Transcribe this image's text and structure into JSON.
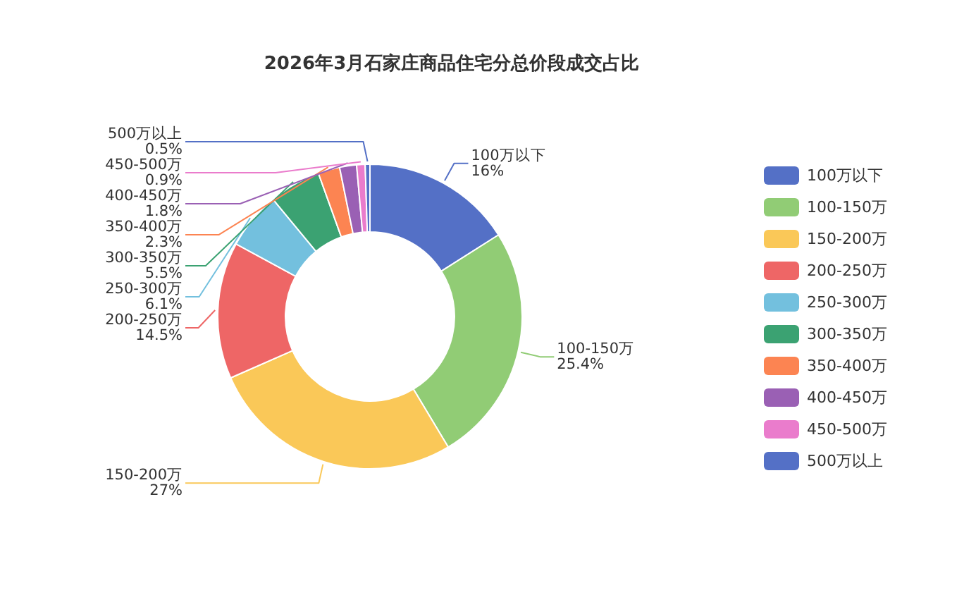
{
  "chart_data": {
    "type": "donut",
    "title": "2026年3月石家庄商品住宅分总价段成交占比",
    "categories": [
      "100万以下",
      "100-150万",
      "150-200万",
      "200-250万",
      "250-300万",
      "300-350万",
      "350-400万",
      "400-450万",
      "450-500万",
      "500万以上"
    ],
    "values": [
      16,
      25.4,
      27,
      14.5,
      6.1,
      5.5,
      2.3,
      1.8,
      0.9,
      0.5
    ],
    "value_labels": [
      "16%",
      "25.4%",
      "27%",
      "14.5%",
      "6.1%",
      "5.5%",
      "2.3%",
      "1.8%",
      "0.9%",
      "0.5%"
    ],
    "colors": [
      "#5470c6",
      "#91cc75",
      "#fac858",
      "#ee6666",
      "#73c0de",
      "#3ba272",
      "#fc8452",
      "#9a60b4",
      "#ea7ccc",
      "#5470c6"
    ],
    "legend": "right"
  }
}
